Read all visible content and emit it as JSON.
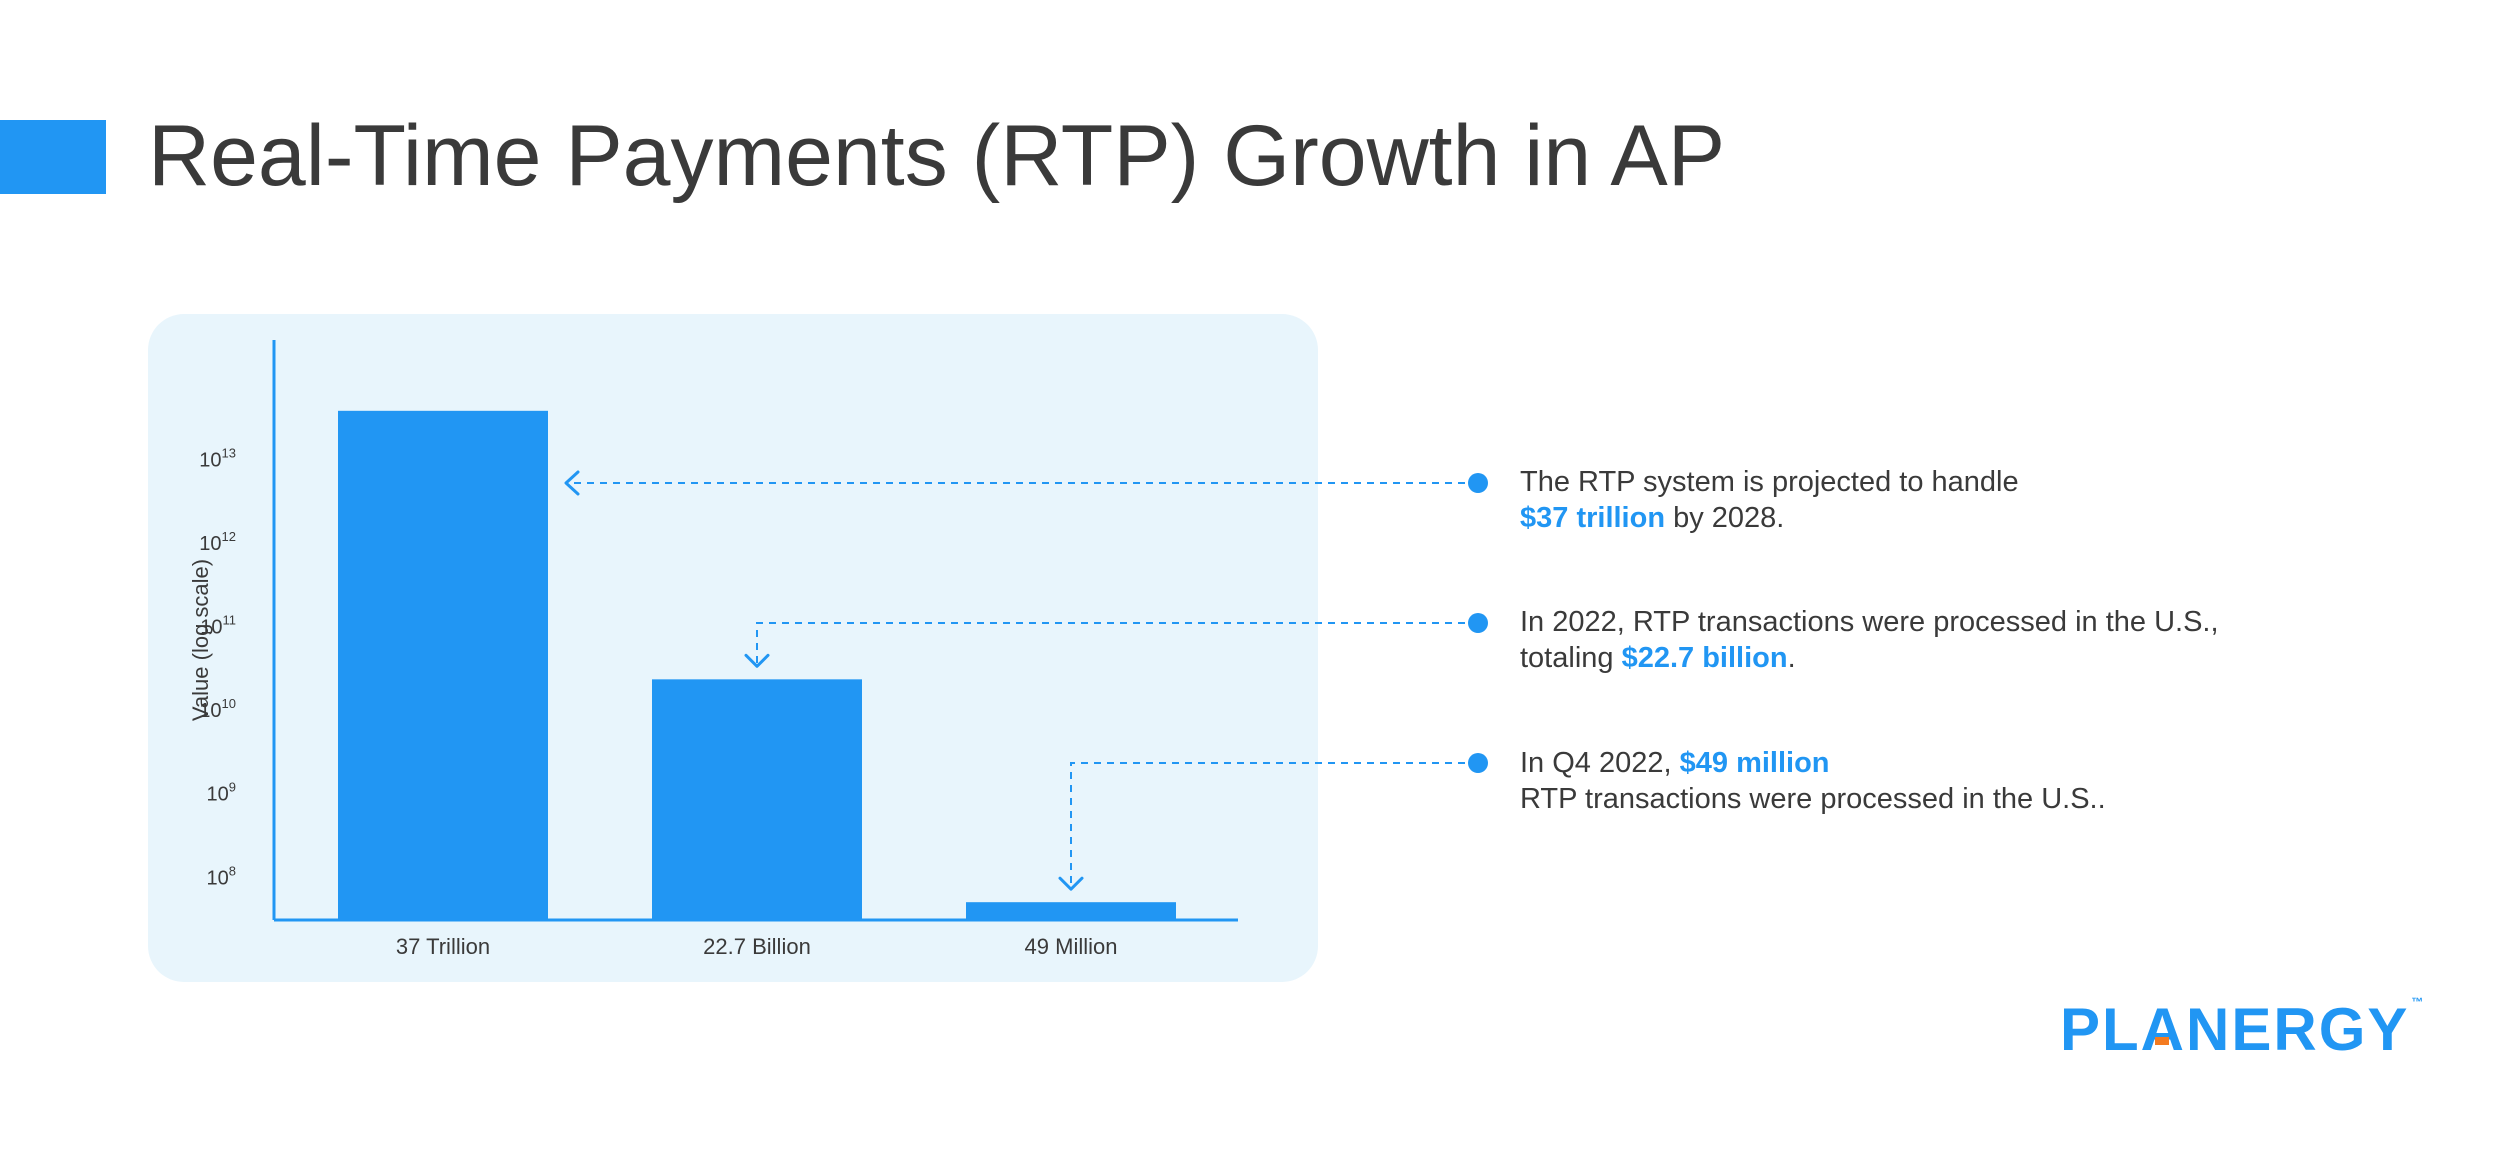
{
  "page": {
    "title": "Real-Time Payments (RTP) Growth in AP",
    "accent": "#2196f3",
    "text_color": "#3a3a3a",
    "panel_bg": "#e8f5fc"
  },
  "chart_data": {
    "type": "bar",
    "scale": "log",
    "ylabel": "Value (log scale)",
    "xlabel": "",
    "ylim": [
      30000000,
      150000000000000
    ],
    "y_ticks": [
      {
        "value": 100000000,
        "base": "10",
        "exp": "8"
      },
      {
        "value": 1000000000,
        "base": "10",
        "exp": "9"
      },
      {
        "value": 10000000000,
        "base": "10",
        "exp": "10"
      },
      {
        "value": 100000000000,
        "base": "10",
        "exp": "11"
      },
      {
        "value": 1000000000000,
        "base": "10",
        "exp": "12"
      },
      {
        "value": 10000000000000,
        "base": "10",
        "exp": "13"
      }
    ],
    "categories": [
      "37 Trillion",
      "22.7 Billion",
      "49 Million"
    ],
    "values": [
      37000000000000,
      22700000000,
      49000000
    ],
    "bar_color": "#2196f3",
    "grid": false
  },
  "callouts": [
    {
      "line1_pre": "The RTP system is projected to handle",
      "highlight": "$37 trillion",
      "line2_post": " by 2028.",
      "target_index": 0
    },
    {
      "line1_pre": "In 2022, RTP transactions were processed in the U.S.,",
      "line2_pre": "totaling ",
      "highlight": "$22.7 billion",
      "line2_post": ".",
      "target_index": 1
    },
    {
      "line1_pre": "In Q4 2022, ",
      "highlight": "$49 million",
      "line2_post": "RTP transactions were processed in the U.S..",
      "target_index": 2
    }
  ],
  "logo": {
    "text_pre": "PL",
    "text_a": "A",
    "text_post": "NERGY",
    "tm": "™"
  }
}
